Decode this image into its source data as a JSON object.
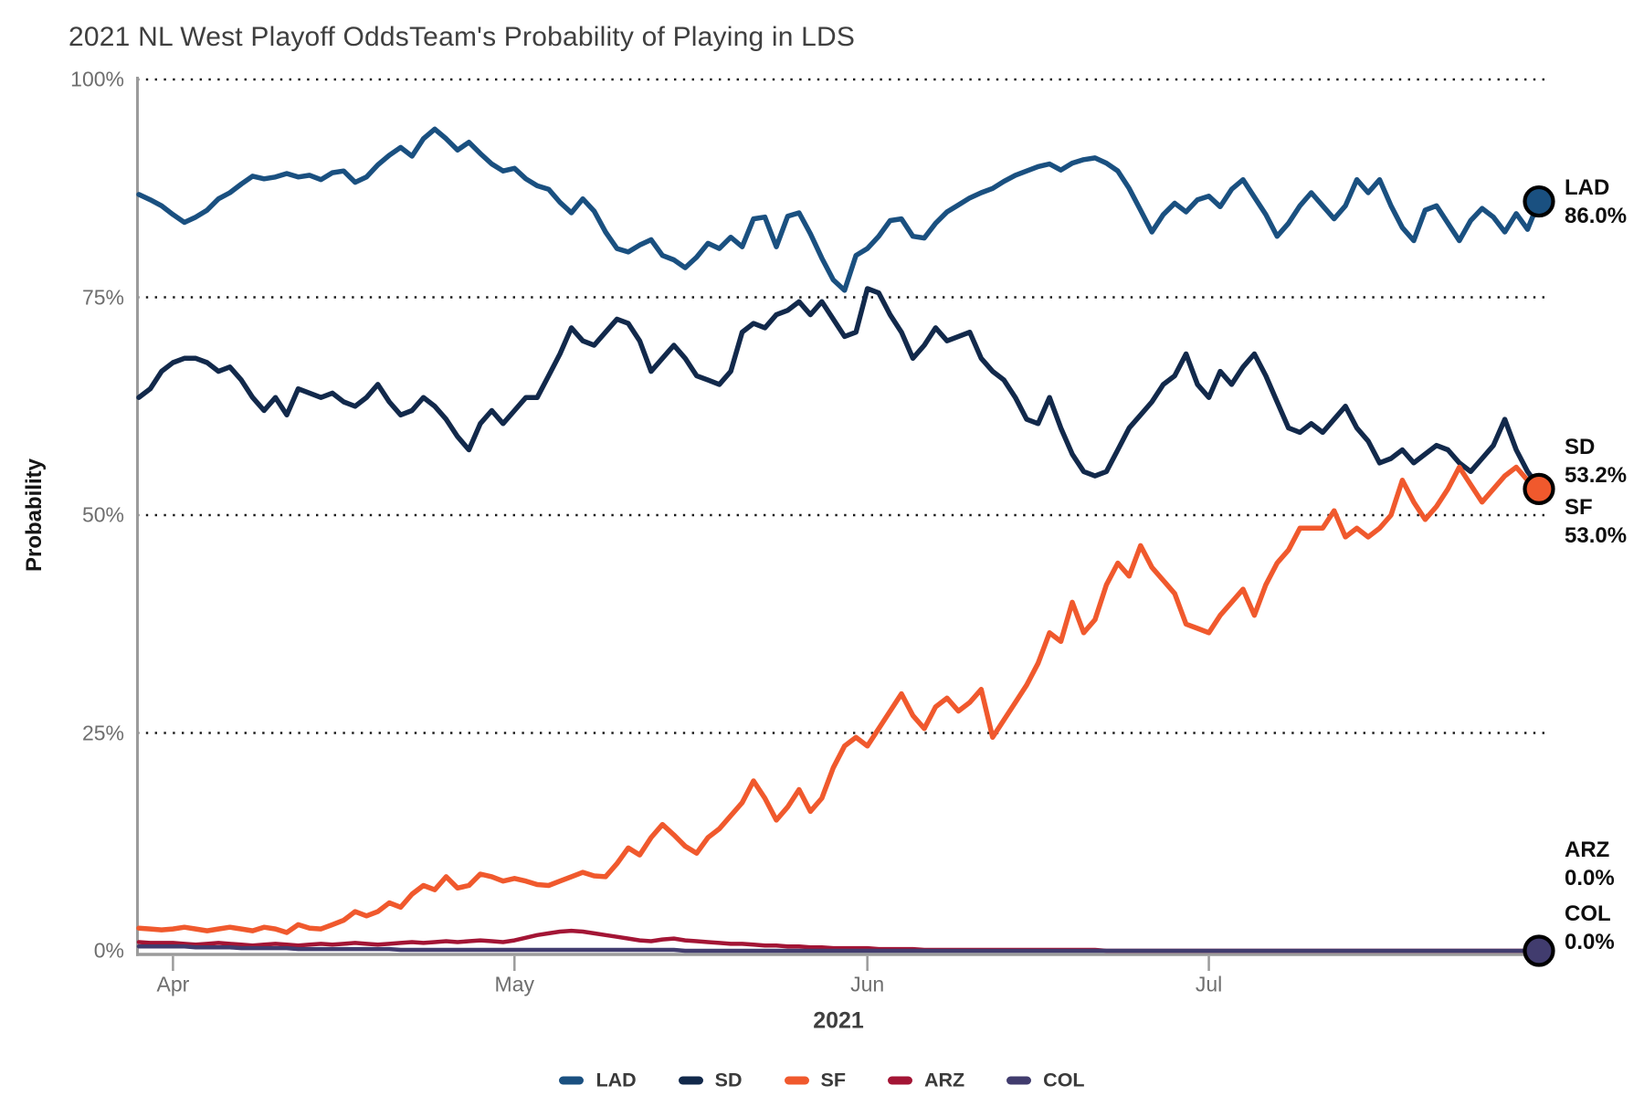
{
  "header": {
    "title": "2021 NL West Playoff Odds",
    "subtitle": "Team's Probability of Playing in LDS"
  },
  "chart_data": {
    "type": "line",
    "title": "2021 NL West Playoff OddsTeam's Probability of Playing in LDS",
    "xlabel": "2021",
    "ylabel": "Probability",
    "ylim": [
      0,
      100
    ],
    "grid": "dotted horizontal lines at 25/50/75/100",
    "grid_values": [
      25,
      50,
      75,
      100
    ],
    "legend_position": "bottom",
    "x_frequency": "daily",
    "x_start": "late Mar 2021",
    "x_end": "late Jul 2021",
    "x_ticks": [
      {
        "label": "Apr",
        "index": 3
      },
      {
        "label": "May",
        "index": 33
      },
      {
        "label": "Jun",
        "index": 64
      },
      {
        "label": "Jul",
        "index": 94
      }
    ],
    "y_ticks": [
      {
        "label": "0%",
        "value": 0
      },
      {
        "label": "25%",
        "value": 25
      },
      {
        "label": "50%",
        "value": 50
      },
      {
        "label": "75%",
        "value": 75
      },
      {
        "label": "100%",
        "value": 100
      }
    ],
    "style": {
      "grid_color": "#1a1a1a",
      "axis_color": "#9b9b9b",
      "tick_label_color": "#6e6e6e",
      "title_color": "#3f3f3f",
      "end_label_color": "#0f0f0f"
    },
    "series": [
      {
        "name": "LAD",
        "color": "#1a5080",
        "end_value": 86.0,
        "end_label": "86.0%",
        "end_marker": true,
        "values": [
          86.8,
          86.2,
          85.5,
          84.5,
          83.6,
          84.2,
          85,
          86.3,
          87,
          88,
          88.9,
          88.6,
          88.8,
          89.2,
          88.8,
          89,
          88.5,
          89.3,
          89.5,
          88.2,
          88.8,
          90.2,
          91.3,
          92.2,
          91.2,
          93.2,
          94.3,
          93.2,
          91.9,
          92.8,
          91.5,
          90.3,
          89.5,
          89.8,
          88.6,
          87.8,
          87.4,
          85.9,
          84.7,
          86.3,
          84.9,
          82.5,
          80.6,
          80.2,
          81,
          81.6,
          79.8,
          79.3,
          78.4,
          79.6,
          81.2,
          80.6,
          81.9,
          80.8,
          84,
          84.2,
          80.8,
          84.3,
          84.7,
          82.3,
          79.5,
          77,
          75.8,
          79.8,
          80.6,
          82,
          83.8,
          84,
          82,
          81.8,
          83.5,
          84.8,
          85.6,
          86.4,
          87,
          87.5,
          88.3,
          89,
          89.5,
          90,
          90.3,
          89.6,
          90.4,
          90.8,
          91,
          90.4,
          89.5,
          87.5,
          85,
          82.5,
          84.5,
          85.8,
          84.8,
          86.2,
          86.6,
          85.4,
          87.4,
          88.5,
          86.5,
          84.5,
          82,
          83.5,
          85.5,
          87,
          85.5,
          84,
          85.5,
          88.5,
          87,
          88.5,
          85.5,
          83,
          81.5,
          85,
          85.5,
          83.5,
          81.5,
          83.8,
          85.2,
          84.2,
          82.5,
          84.6,
          82.8,
          86
        ]
      },
      {
        "name": "SD",
        "color": "#12294b",
        "end_value": 53.2,
        "end_label": "53.2%",
        "end_marker": false,
        "values": [
          63.5,
          64.5,
          66.5,
          67.5,
          68,
          68,
          67.5,
          66.5,
          67,
          65.5,
          63.5,
          62,
          63.5,
          61.5,
          64.5,
          64,
          63.5,
          64,
          63,
          62.5,
          63.5,
          65,
          63,
          61.5,
          62,
          63.5,
          62.5,
          61,
          59,
          57.5,
          60.5,
          62,
          60.5,
          62,
          63.5,
          63.5,
          66,
          68.5,
          71.5,
          70,
          69.5,
          71,
          72.5,
          72,
          70,
          66.5,
          68,
          69.5,
          68,
          66,
          65.5,
          65,
          66.5,
          71,
          72,
          71.5,
          73,
          73.5,
          74.5,
          73,
          74.5,
          72.5,
          70.5,
          71,
          76,
          75.5,
          73,
          71,
          68,
          69.5,
          71.5,
          70,
          70.5,
          71,
          68,
          66.5,
          65.5,
          63.5,
          61,
          60.5,
          63.5,
          60,
          57,
          55,
          54.5,
          55,
          57.5,
          60,
          61.5,
          63,
          65,
          66,
          68.5,
          65,
          63.5,
          66.5,
          65,
          67,
          68.5,
          66,
          63,
          60,
          59.5,
          60.5,
          59.5,
          61,
          62.5,
          60,
          58.5,
          56,
          56.5,
          57.5,
          56,
          57,
          58,
          57.5,
          56,
          55,
          56.5,
          58,
          61,
          57.5,
          55,
          53.2
        ]
      },
      {
        "name": "SF",
        "color": "#f0592d",
        "end_value": 53.0,
        "end_label": "53.0%",
        "end_marker": true,
        "values": [
          2.6,
          2.5,
          2.4,
          2.5,
          2.7,
          2.5,
          2.3,
          2.5,
          2.7,
          2.5,
          2.3,
          2.7,
          2.5,
          2.1,
          3,
          2.6,
          2.5,
          3,
          3.5,
          4.5,
          4,
          4.5,
          5.5,
          5,
          6.5,
          7.5,
          7,
          8.5,
          7.2,
          7.5,
          8.8,
          8.5,
          8,
          8.3,
          8,
          7.6,
          7.5,
          8,
          8.5,
          9,
          8.6,
          8.5,
          10,
          11.8,
          11,
          13,
          14.5,
          13.3,
          12,
          11.2,
          13,
          14,
          15.5,
          17,
          19.5,
          17.5,
          15,
          16.5,
          18.5,
          16,
          17.5,
          21,
          23.5,
          24.5,
          23.5,
          25.5,
          27.5,
          29.5,
          27,
          25.5,
          28,
          29,
          27.5,
          28.5,
          30,
          24.5,
          26.5,
          28.5,
          30.5,
          33,
          36.5,
          35.5,
          40,
          36.5,
          38,
          42,
          44.5,
          43,
          46.5,
          44,
          42.5,
          41,
          37.5,
          37,
          36.5,
          38.5,
          40,
          41.5,
          38.5,
          42,
          44.5,
          46,
          48.5,
          48.5,
          48.5,
          50.5,
          47.5,
          48.5,
          47.5,
          48.5,
          50,
          54,
          51.5,
          49.5,
          51,
          53,
          55.5,
          53.5,
          51.5,
          53,
          54.5,
          55.5,
          54,
          53
        ]
      },
      {
        "name": "ARZ",
        "color": "#a31535",
        "end_value": 0.0,
        "end_label": "0.0%",
        "end_marker": false,
        "values": [
          1,
          0.9,
          0.9,
          0.9,
          0.8,
          0.7,
          0.8,
          0.9,
          0.8,
          0.7,
          0.6,
          0.7,
          0.8,
          0.7,
          0.6,
          0.7,
          0.8,
          0.7,
          0.8,
          0.9,
          0.8,
          0.7,
          0.8,
          0.9,
          1,
          0.9,
          1,
          1.1,
          1,
          1.1,
          1.2,
          1.1,
          1,
          1.2,
          1.5,
          1.8,
          2,
          2.2,
          2.3,
          2.2,
          2,
          1.8,
          1.6,
          1.4,
          1.2,
          1.1,
          1.3,
          1.4,
          1.2,
          1.1,
          1,
          0.9,
          0.8,
          0.8,
          0.7,
          0.6,
          0.6,
          0.5,
          0.5,
          0.4,
          0.4,
          0.3,
          0.3,
          0.3,
          0.3,
          0.2,
          0.2,
          0.2,
          0.2,
          0.1,
          0.1,
          0.1,
          0.1,
          0.1,
          0.1,
          0.1,
          0.1,
          0.1,
          0.1,
          0.1,
          0.1,
          0.1,
          0.1,
          0.1,
          0.1,
          0,
          0,
          0,
          0,
          0,
          0,
          0,
          0,
          0,
          0,
          0,
          0,
          0,
          0,
          0,
          0,
          0,
          0,
          0,
          0,
          0,
          0,
          0,
          0,
          0,
          0,
          0,
          0,
          0,
          0,
          0,
          0,
          0,
          0,
          0,
          0,
          0,
          0,
          0
        ]
      },
      {
        "name": "COL",
        "color": "#413c6e",
        "end_value": 0.0,
        "end_label": "0.0%",
        "end_marker": true,
        "values": [
          0.5,
          0.5,
          0.5,
          0.5,
          0.5,
          0.4,
          0.4,
          0.4,
          0.4,
          0.3,
          0.3,
          0.3,
          0.3,
          0.3,
          0.2,
          0.2,
          0.2,
          0.2,
          0.2,
          0.2,
          0.2,
          0.2,
          0.2,
          0.1,
          0.1,
          0.1,
          0.1,
          0.1,
          0.1,
          0.1,
          0.1,
          0.1,
          0.1,
          0.1,
          0.1,
          0.1,
          0.1,
          0.1,
          0.1,
          0.1,
          0.1,
          0.1,
          0.1,
          0.1,
          0.1,
          0.1,
          0.1,
          0.1,
          0,
          0,
          0,
          0,
          0,
          0,
          0,
          0,
          0,
          0,
          0,
          0,
          0,
          0,
          0,
          0,
          0,
          0,
          0,
          0,
          0,
          0,
          0,
          0,
          0,
          0,
          0,
          0,
          0,
          0,
          0,
          0,
          0,
          0,
          0,
          0,
          0,
          0,
          0,
          0,
          0,
          0,
          0,
          0,
          0,
          0,
          0,
          0,
          0,
          0,
          0,
          0,
          0,
          0,
          0,
          0,
          0,
          0,
          0,
          0,
          0,
          0,
          0,
          0,
          0,
          0,
          0,
          0,
          0,
          0,
          0,
          0,
          0,
          0,
          0,
          0
        ]
      }
    ]
  }
}
